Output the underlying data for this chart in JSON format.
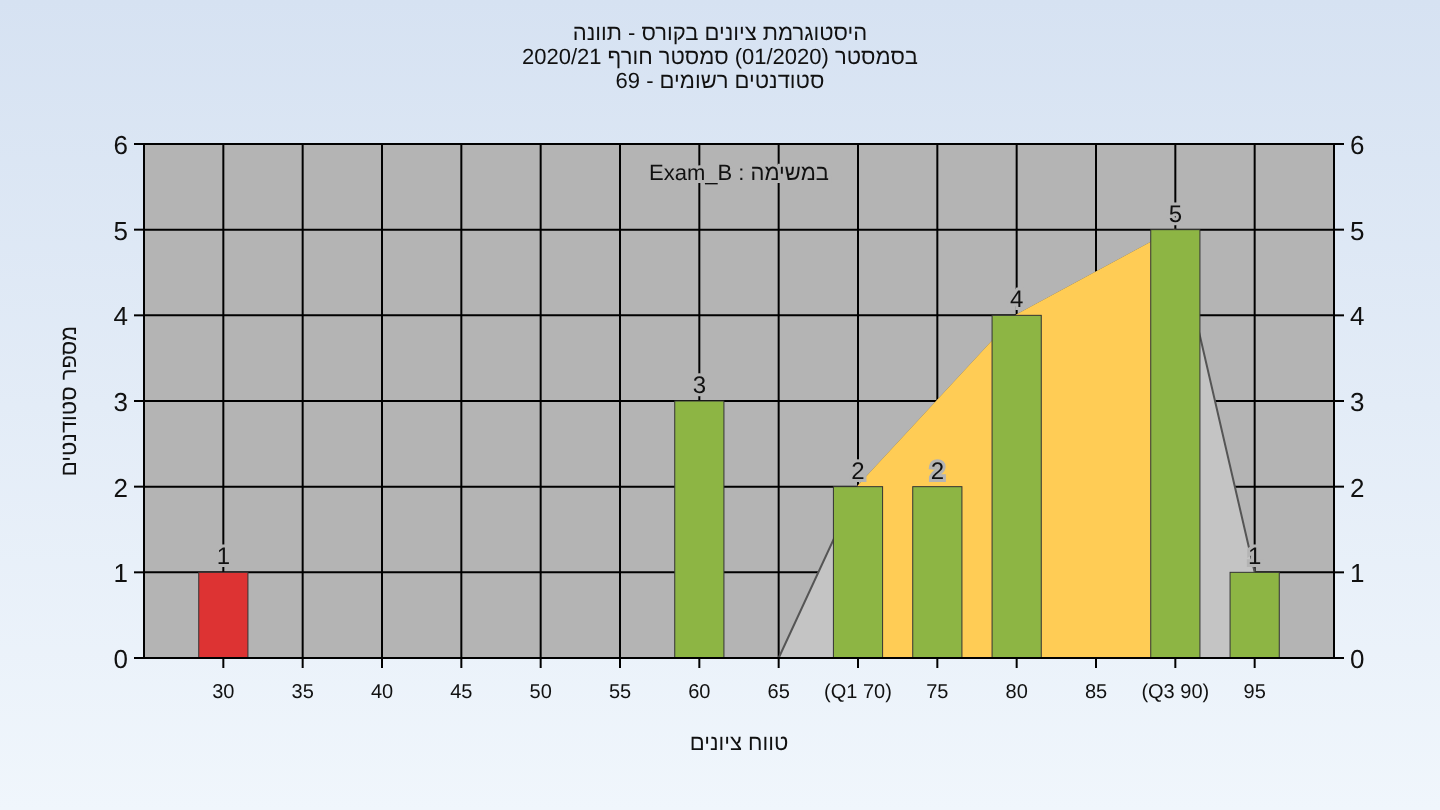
{
  "chart_data": {
    "type": "bar",
    "title": "היסטוגרמת ציונים בקורס - תוונה",
    "subtitle": "בסמסטר  (01/2020)  סמסטר חורף 2020/21\nסטודנטים רשומים - 69",
    "xlabel": "טווח ציונים",
    "ylabel": "מספר סטודנטים",
    "annotations": [
      "במשימה : Exam_B"
    ],
    "xlim": [
      25,
      100
    ],
    "ylim": [
      0,
      6
    ],
    "y2lim": [
      0,
      6
    ],
    "xticks": [
      30,
      35,
      40,
      45,
      50,
      55,
      60,
      65,
      {
        "value": 70,
        "label": "(Q1 70)"
      },
      75,
      80,
      85,
      {
        "value": 90,
        "label": "(Q3 90)"
      },
      95
    ],
    "yticks": [
      0,
      1,
      2,
      3,
      4,
      5,
      6
    ],
    "y2ticks": [
      0,
      1,
      2,
      3,
      4,
      5,
      6
    ],
    "grid": true,
    "series": [
      {
        "type": "area",
        "color": "#c4c4c4",
        "x": [
          65,
          70,
          80,
          90,
          95
        ],
        "values": [
          0,
          2,
          4,
          5,
          1
        ]
      },
      {
        "type": "area",
        "color": "#ffcc55",
        "x": [
          70,
          80,
          90
        ],
        "values": [
          2,
          4,
          5
        ]
      },
      {
        "x": [
          30,
          60,
          70,
          75,
          80,
          90,
          95
        ],
        "values": [
          1,
          3,
          2,
          2,
          4,
          5,
          1
        ],
        "colors": [
          "#dd3333",
          "#8db544",
          "#8db544",
          "#8db544",
          "#8db544",
          "#8db544",
          "#8db544"
        ],
        "value_labels": [
          "1",
          "3",
          "2",
          "2",
          "4",
          "5",
          "1"
        ]
      }
    ]
  }
}
